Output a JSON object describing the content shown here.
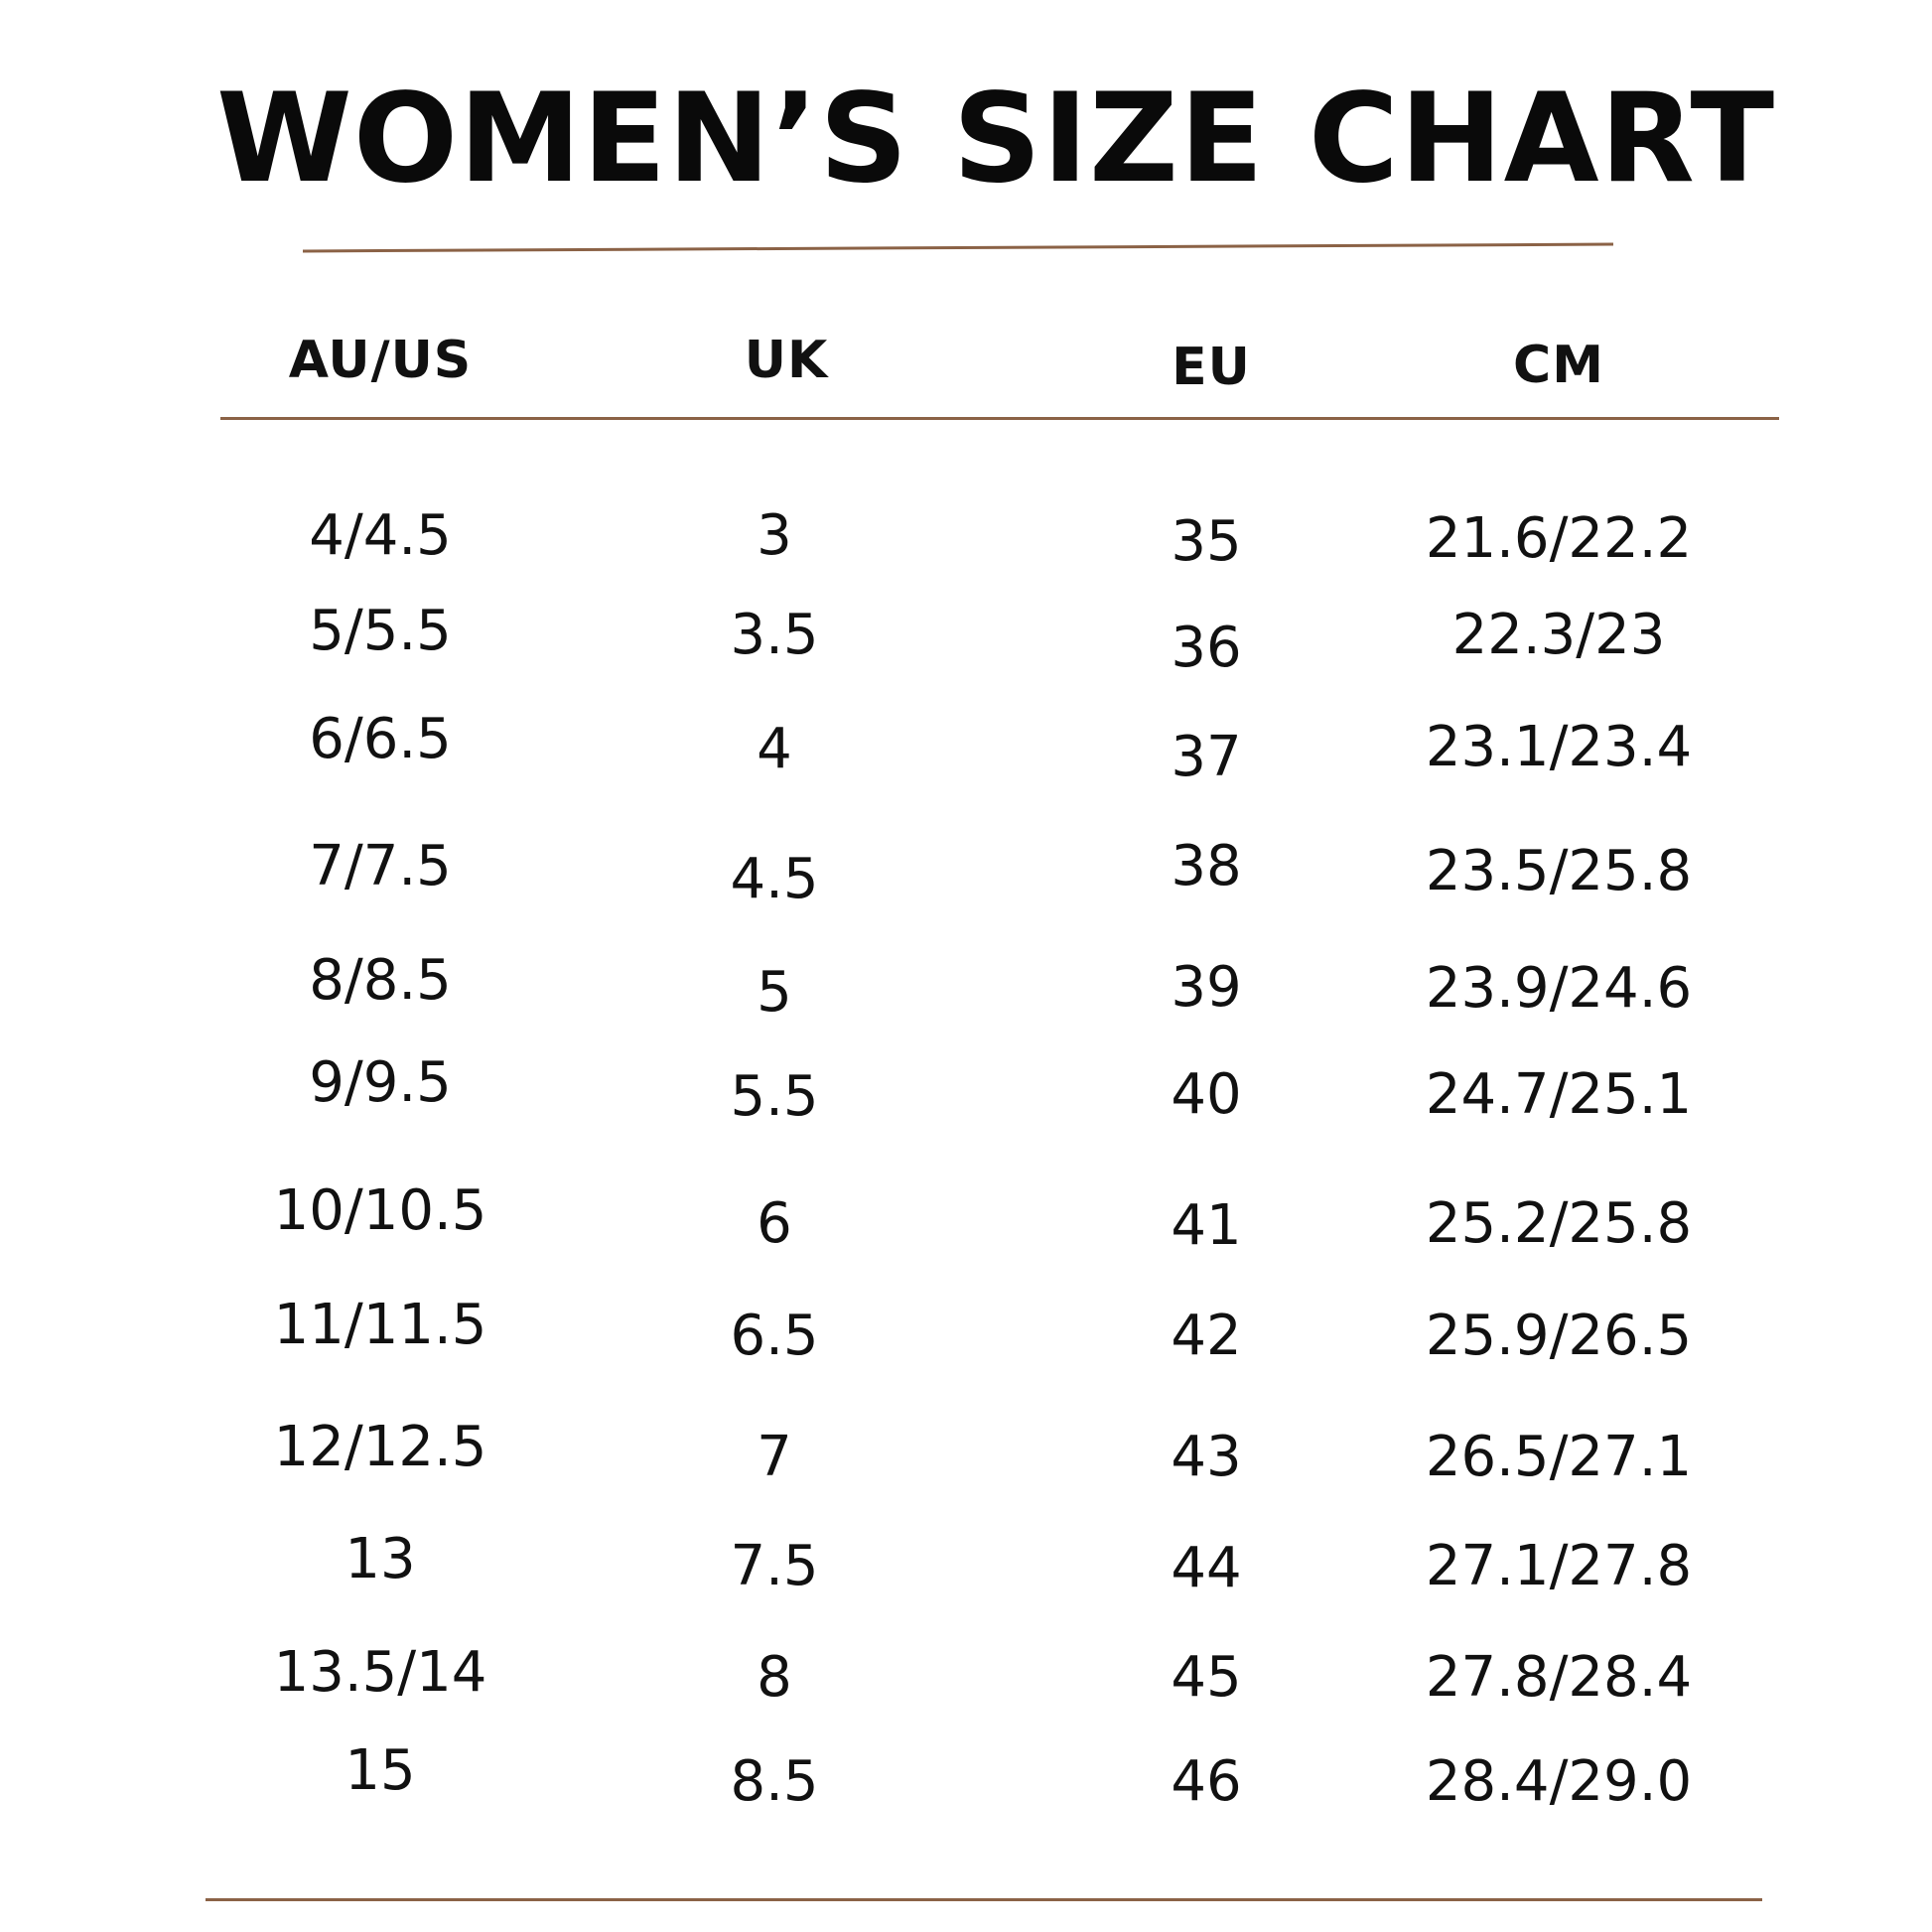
{
  "title": "WOMEN’S SIZE CHART",
  "colors": {
    "accent_rule": "#8b6246",
    "text": "#111111",
    "background": "#ffffff"
  },
  "headers": [
    "AU/US",
    "UK",
    "EU",
    "CM"
  ],
  "rows": [
    [
      "4/4.5",
      "3",
      "35",
      "21.6/22.2"
    ],
    [
      "5/5.5",
      "3.5",
      "36",
      "22.3/23"
    ],
    [
      "6/6.5",
      "4",
      "37",
      "23.1/23.4"
    ],
    [
      "7/7.5",
      "4.5",
      "38",
      "23.5/25.8"
    ],
    [
      "8/8.5",
      "5",
      "39",
      "23.9/24.6"
    ],
    [
      "9/9.5",
      "5.5",
      "40",
      "24.7/25.1"
    ],
    [
      "10/10.5",
      "6",
      "41",
      "25.2/25.8"
    ],
    [
      "11/11.5",
      "6.5",
      "42",
      "25.9/26.5"
    ],
    [
      "12/12.5",
      "7",
      "43",
      "26.5/27.1"
    ],
    [
      "13",
      "7.5",
      "44",
      "27.1/27.8"
    ],
    [
      "13.5/14",
      "8",
      "45",
      "27.8/28.4"
    ],
    [
      "15",
      "8.5",
      "46",
      "28.4/29.0"
    ]
  ]
}
